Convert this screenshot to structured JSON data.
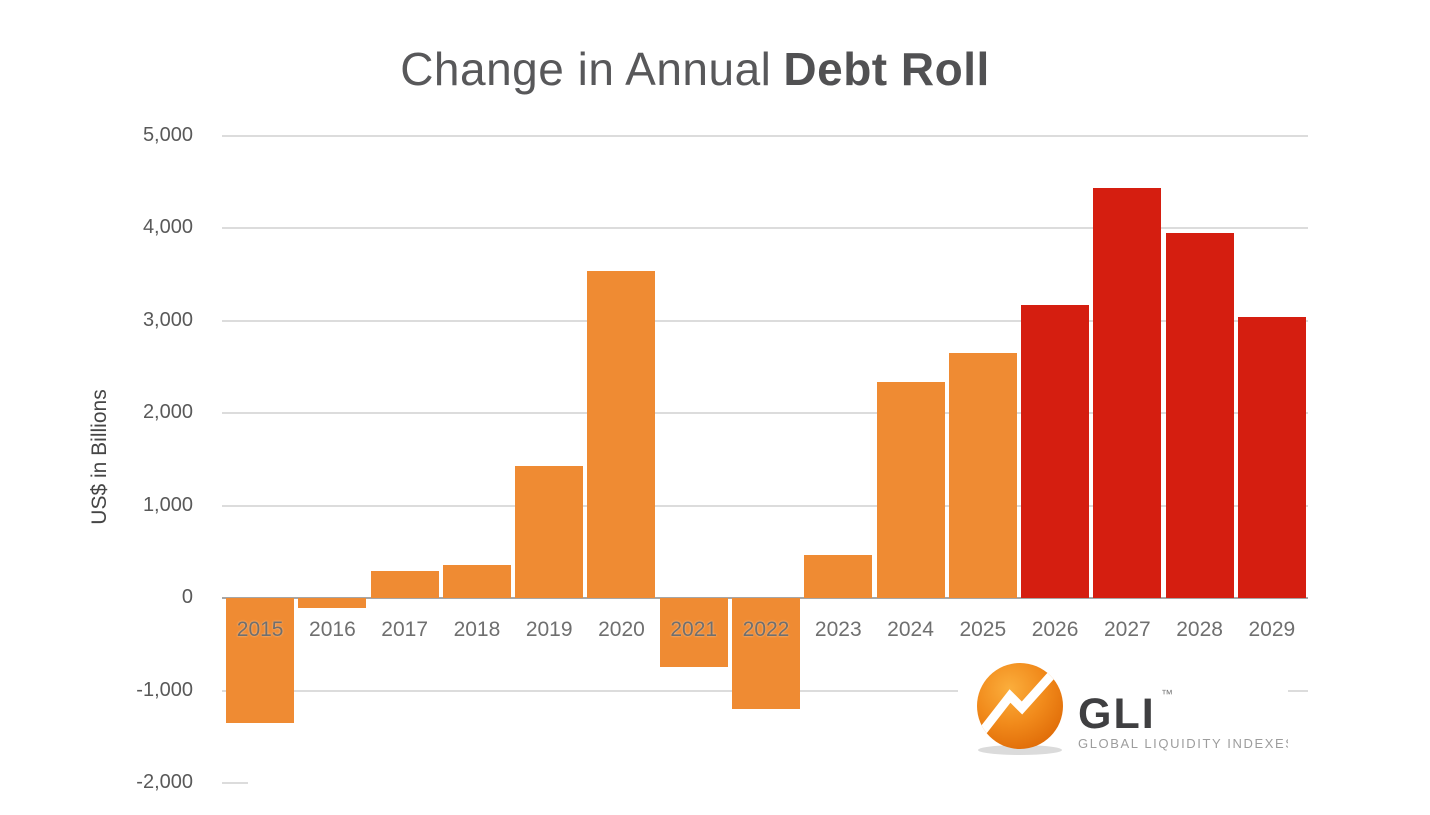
{
  "title": {
    "regular": "Change in Annual",
    "bold": "Debt Roll"
  },
  "y_axis": {
    "label": "US$ in Billions",
    "tick_labels": [
      "5,000",
      "4,000",
      "3,000",
      "2,000",
      "1,000",
      "0",
      "-1,000",
      "-2,000"
    ],
    "tick_values": [
      5000,
      4000,
      3000,
      2000,
      1000,
      0,
      -1000,
      -2000
    ]
  },
  "chart_data": {
    "type": "bar",
    "title": "Change in Annual Debt Roll",
    "xlabel": "",
    "ylabel": "US$ in Billions",
    "ylim": [
      -2000,
      5000
    ],
    "grid": "horizontal",
    "legend_position": "none",
    "categories": [
      "2015",
      "2016",
      "2017",
      "2018",
      "2019",
      "2020",
      "2021",
      "2022",
      "2023",
      "2024",
      "2025",
      "2026",
      "2027",
      "2028",
      "2029"
    ],
    "values": [
      -1350,
      -110,
      290,
      360,
      1430,
      3530,
      -750,
      -1200,
      470,
      2330,
      2650,
      3170,
      4430,
      3950,
      3040
    ],
    "projected_years": [
      "2026",
      "2027",
      "2028",
      "2029"
    ]
  },
  "colors": {
    "bar_orange": "#EF8B33",
    "bar_red": "#D51E10",
    "grid": "#DCDCDC",
    "zero_axis": "#A6A6A6",
    "title_text": "#58585A",
    "tick_text": "#595959",
    "x_label_text": "#6F6F6F"
  },
  "logo": {
    "name": "GLI",
    "trademark": "™",
    "subtitle": "GLOBAL LIQUIDITY INDEXES",
    "ball_color": "#EF7D12"
  }
}
